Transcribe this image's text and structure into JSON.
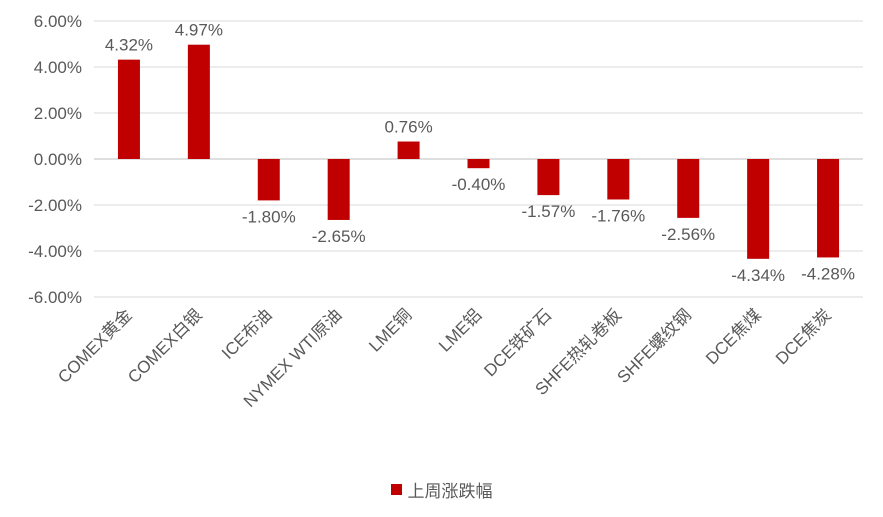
{
  "chart_data": {
    "type": "bar",
    "categories": [
      "COMEX黄金",
      "COMEX白银",
      "ICE布油",
      "NYMEX WTI原油",
      "LME铜",
      "LME铝",
      "DCE铁矿石",
      "SHFE热轧卷板",
      "SHFE螺纹钢",
      "DCE焦煤",
      "DCE焦炭"
    ],
    "series": [
      {
        "name": "上周涨跌幅",
        "values": [
          4.32,
          4.97,
          -1.8,
          -2.65,
          0.76,
          -0.4,
          -1.57,
          -1.76,
          -2.56,
          -4.34,
          -4.28
        ],
        "data_labels": [
          "4.32%",
          "4.97%",
          "-1.80%",
          "-2.65%",
          "0.76%",
          "-0.40%",
          "-1.57%",
          "-1.76%",
          "-2.56%",
          "-4.34%",
          "-4.28%"
        ],
        "color": "#C00000"
      }
    ],
    "y_ticks": [
      "6.00%",
      "4.00%",
      "2.00%",
      "0.00%",
      "-2.00%",
      "-4.00%",
      "-6.00%"
    ],
    "ylim": [
      -6,
      6
    ],
    "grid": true,
    "legend_position": "bottom",
    "title": "",
    "xlabel": "",
    "ylabel": ""
  }
}
